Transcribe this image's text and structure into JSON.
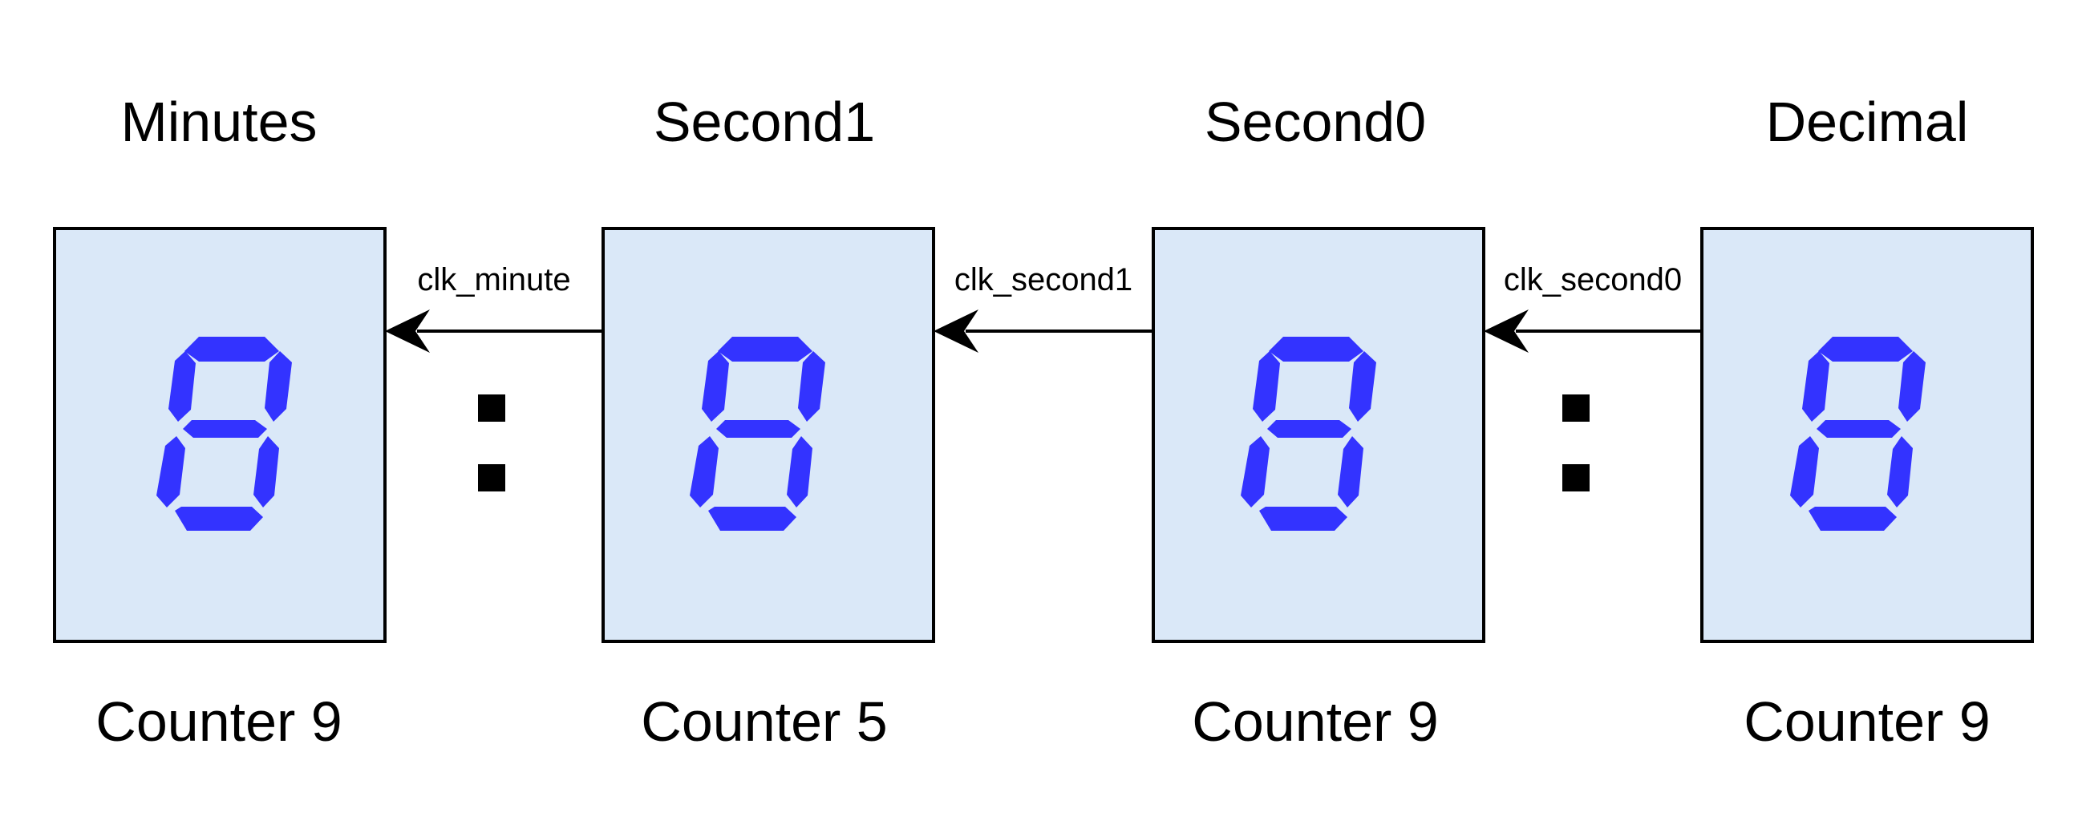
{
  "colors": {
    "box_fill": "#dae8f8",
    "box_stroke": "#000000",
    "segment": "#3333ff",
    "text": "#000000"
  },
  "displays": [
    {
      "title": "Minutes",
      "digit": "8",
      "counter": "Counter 9"
    },
    {
      "title": "Second1",
      "digit": "8",
      "counter": "Counter 5"
    },
    {
      "title": "Second0",
      "digit": "8",
      "counter": "Counter 9"
    },
    {
      "title": "Decimal",
      "digit": "8",
      "counter": "Counter 9"
    }
  ],
  "clock_signals": [
    {
      "label": "clk_minute"
    },
    {
      "label": "clk_second1"
    },
    {
      "label": "clk_second0"
    }
  ],
  "separators": [
    ":",
    ":"
  ]
}
